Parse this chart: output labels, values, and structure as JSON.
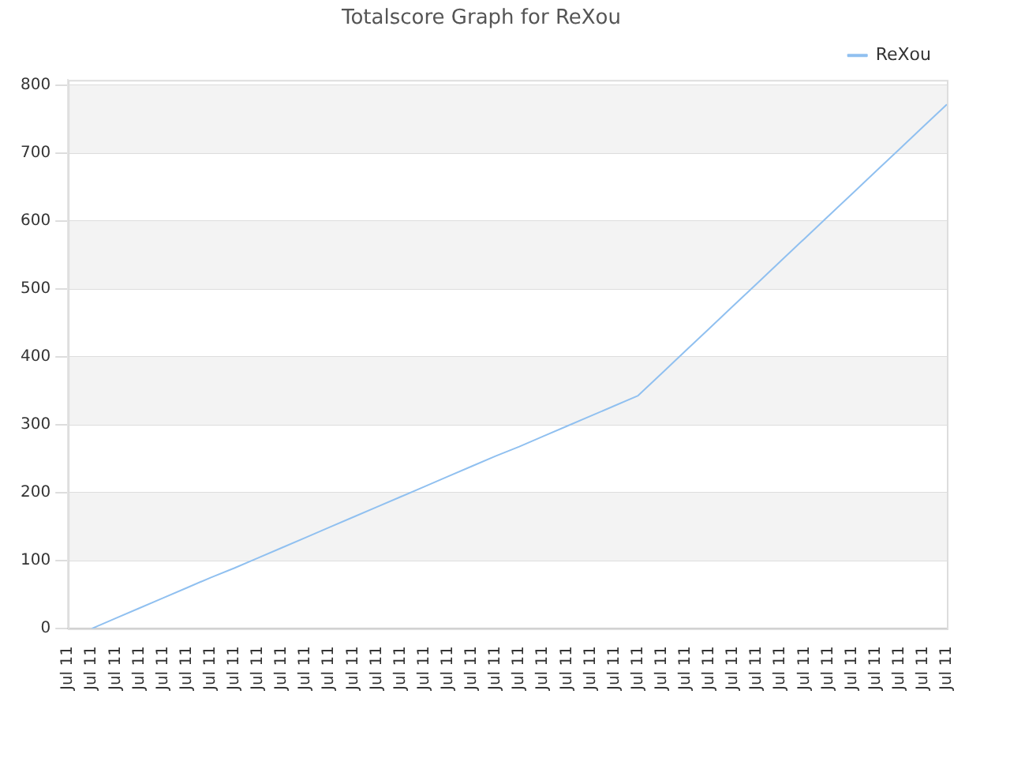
{
  "chart_data": {
    "type": "line",
    "title": "Totalscore Graph for ReXou",
    "categories": [
      "Jul 11",
      "Jul 11",
      "Jul 11",
      "Jul 11",
      "Jul 11",
      "Jul 11",
      "Jul 11",
      "Jul 11",
      "Jul 11",
      "Jul 11",
      "Jul 11",
      "Jul 11",
      "Jul 11",
      "Jul 11",
      "Jul 11",
      "Jul 11",
      "Jul 11",
      "Jul 11",
      "Jul 11",
      "Jul 11",
      "Jul 11",
      "Jul 11",
      "Jul 11",
      "Jul 11",
      "Jul 11",
      "Jul 11",
      "Jul 11",
      "Jul 11",
      "Jul 11",
      "Jul 11",
      "Jul 11",
      "Jul 11",
      "Jul 11",
      "Jul 11",
      "Jul 11",
      "Jul 11",
      "Jul 11",
      "Jul 11"
    ],
    "series": [
      {
        "name": "ReXou",
        "color": "#90c0f0",
        "values": [
          null,
          0,
          15,
          30,
          45,
          60,
          75,
          89,
          104,
          119,
          134,
          149,
          164,
          179,
          194,
          209,
          224,
          239,
          254,
          268,
          283,
          298,
          313,
          328,
          343,
          376,
          409,
          442,
          475,
          508,
          541,
          574,
          607,
          640,
          673,
          706,
          739,
          772
        ]
      }
    ],
    "ylim": [
      0,
      808
    ],
    "yticks": [
      0,
      100,
      200,
      300,
      400,
      500,
      600,
      700,
      800
    ],
    "grid": "y",
    "legend": "top right",
    "marker": "none",
    "line_style": "solid"
  }
}
